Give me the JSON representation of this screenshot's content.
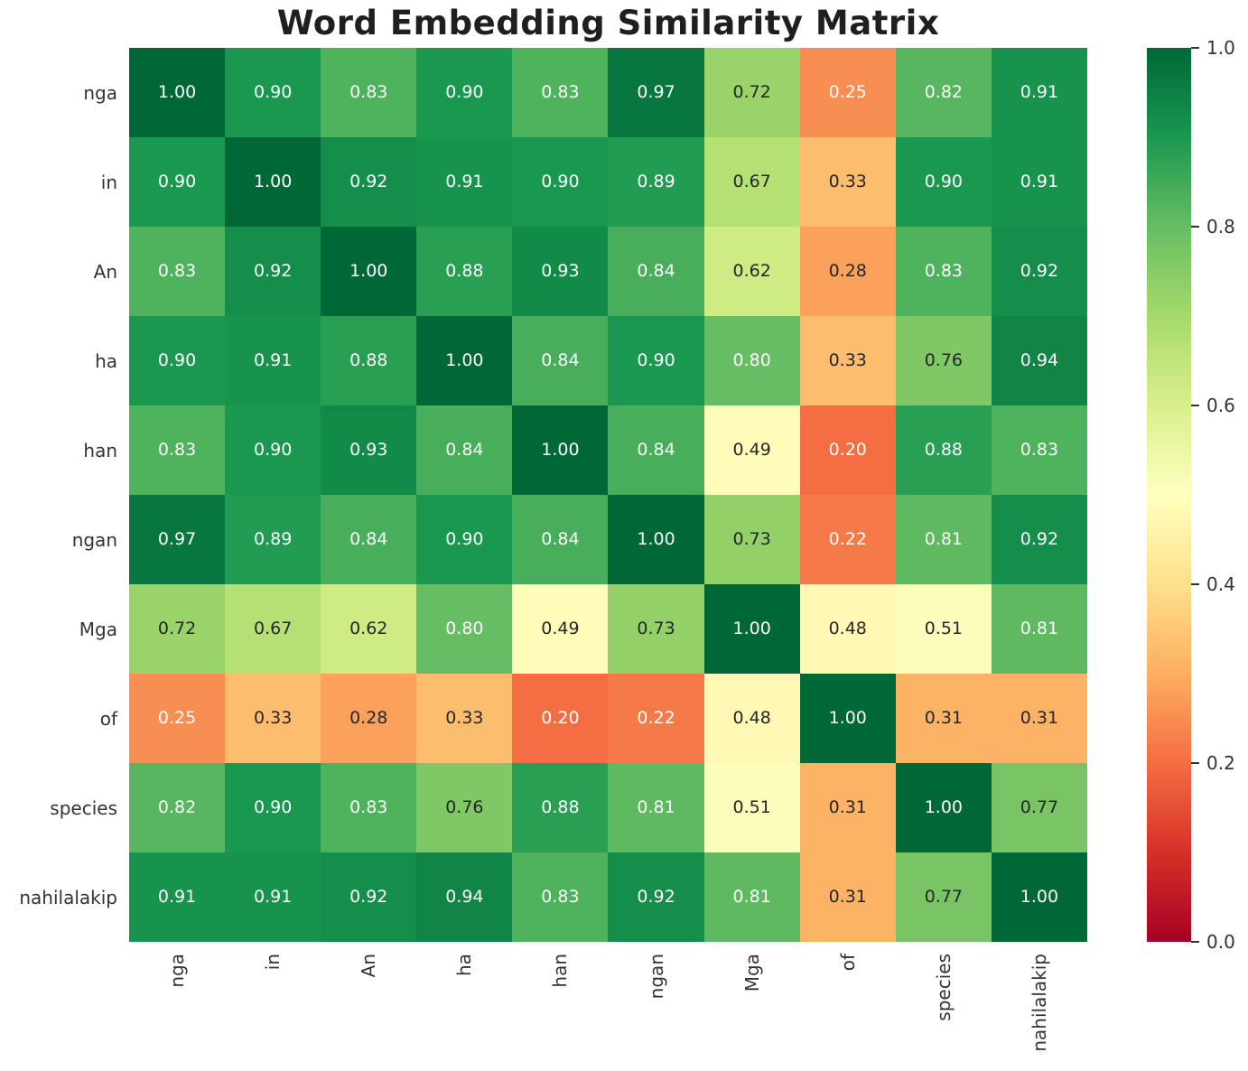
{
  "chart_data": {
    "type": "heatmap",
    "title": "Word Embedding Similarity Matrix",
    "x_labels": [
      "nga",
      "in",
      "An",
      "ha",
      "han",
      "ngan",
      "Mga",
      "of",
      "species",
      "nahilalakip"
    ],
    "y_labels": [
      "nga",
      "in",
      "An",
      "ha",
      "han",
      "ngan",
      "Mga",
      "of",
      "species",
      "nahilalakip"
    ],
    "matrix": [
      [
        1.0,
        0.9,
        0.83,
        0.9,
        0.83,
        0.97,
        0.72,
        0.25,
        0.82,
        0.91
      ],
      [
        0.9,
        1.0,
        0.92,
        0.91,
        0.9,
        0.89,
        0.67,
        0.33,
        0.9,
        0.91
      ],
      [
        0.83,
        0.92,
        1.0,
        0.88,
        0.93,
        0.84,
        0.62,
        0.28,
        0.83,
        0.92
      ],
      [
        0.9,
        0.91,
        0.88,
        1.0,
        0.84,
        0.9,
        0.8,
        0.33,
        0.76,
        0.94
      ],
      [
        0.83,
        0.9,
        0.93,
        0.84,
        1.0,
        0.84,
        0.49,
        0.2,
        0.88,
        0.83
      ],
      [
        0.97,
        0.89,
        0.84,
        0.9,
        0.84,
        1.0,
        0.73,
        0.22,
        0.81,
        0.92
      ],
      [
        0.72,
        0.67,
        0.62,
        0.8,
        0.49,
        0.73,
        1.0,
        0.48,
        0.51,
        0.81
      ],
      [
        0.25,
        0.33,
        0.28,
        0.33,
        0.2,
        0.22,
        0.48,
        1.0,
        0.31,
        0.31
      ],
      [
        0.82,
        0.9,
        0.83,
        0.76,
        0.88,
        0.81,
        0.51,
        0.31,
        1.0,
        0.77
      ],
      [
        0.91,
        0.91,
        0.92,
        0.94,
        0.83,
        0.92,
        0.81,
        0.31,
        0.77,
        1.0
      ]
    ],
    "value_decimals": 2,
    "vmin": 0.0,
    "vmax": 1.0,
    "colormap": {
      "name": "RdYlGn",
      "anchors": [
        "#a50026",
        "#d73027",
        "#f46d43",
        "#fdae61",
        "#fee08b",
        "#ffffbf",
        "#d9ef8b",
        "#a6d96a",
        "#66bd63",
        "#1a9850",
        "#006837"
      ]
    },
    "colorbar_ticks": [
      "1.0",
      "0.8",
      "0.6",
      "0.4",
      "0.2",
      "0.0"
    ],
    "annotation_colors": {
      "light": "#ffffff",
      "dark": "#262626"
    },
    "tick_label_color": "#333333",
    "legend_position": "right",
    "grid": false
  }
}
